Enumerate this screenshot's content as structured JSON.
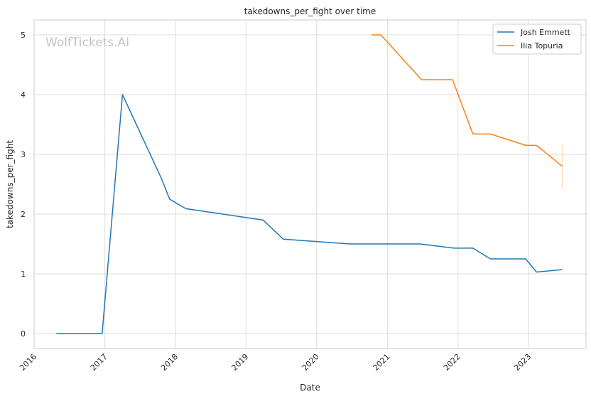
{
  "chart_data": {
    "type": "line",
    "title": "takedowns_per_fight over time",
    "xlabel": "Date",
    "ylabel": "takedowns_per_fight",
    "watermark": "WolfTickets.AI",
    "x_ticks": [
      "2016",
      "2017",
      "2018",
      "2019",
      "2020",
      "2021",
      "2022",
      "2023"
    ],
    "y_ticks": [
      "0",
      "1",
      "2",
      "3",
      "4",
      "5"
    ],
    "xlim": [
      "2016-01-01",
      "2023-10-25"
    ],
    "ylim": [
      -0.25,
      5.25
    ],
    "grid": true,
    "legend_position": "top-right",
    "series": [
      {
        "name": "Josh Emmett",
        "color": "#1f77b4",
        "points": [
          {
            "x": "2016-04-25",
            "y": 0.0
          },
          {
            "x": "2016-12-18",
            "y": 0.0
          },
          {
            "x": "2017-04-02",
            "y": 4.0
          },
          {
            "x": "2017-10-20",
            "y": 2.6
          },
          {
            "x": "2017-12-02",
            "y": 2.25
          },
          {
            "x": "2018-02-24",
            "y": 2.09
          },
          {
            "x": "2019-03-30",
            "y": 1.9
          },
          {
            "x": "2019-07-13",
            "y": 1.58
          },
          {
            "x": "2020-06-20",
            "y": 1.5
          },
          {
            "x": "2021-06-19",
            "y": 1.5
          },
          {
            "x": "2021-12-11",
            "y": 1.43
          },
          {
            "x": "2022-03-19",
            "y": 1.43
          },
          {
            "x": "2022-06-18",
            "y": 1.25
          },
          {
            "x": "2022-12-17",
            "y": 1.25
          },
          {
            "x": "2023-02-11",
            "y": 1.03
          },
          {
            "x": "2023-06-24",
            "y": 1.07
          }
        ]
      },
      {
        "name": "Ilia Topuria",
        "color": "#ff7f0e",
        "points": [
          {
            "x": "2020-10-10",
            "y": 5.0
          },
          {
            "x": "2020-11-28",
            "y": 5.0
          },
          {
            "x": "2021-06-26",
            "y": 4.25
          },
          {
            "x": "2021-12-04",
            "y": 4.25
          },
          {
            "x": "2022-03-19",
            "y": 3.34
          },
          {
            "x": "2022-06-18",
            "y": 3.34
          },
          {
            "x": "2022-12-17",
            "y": 3.15
          },
          {
            "x": "2023-02-11",
            "y": 3.15
          },
          {
            "x": "2023-06-24",
            "y": 2.8
          }
        ],
        "error_bar": {
          "x": "2023-06-24",
          "low": 2.43,
          "high": 3.17
        }
      }
    ]
  }
}
